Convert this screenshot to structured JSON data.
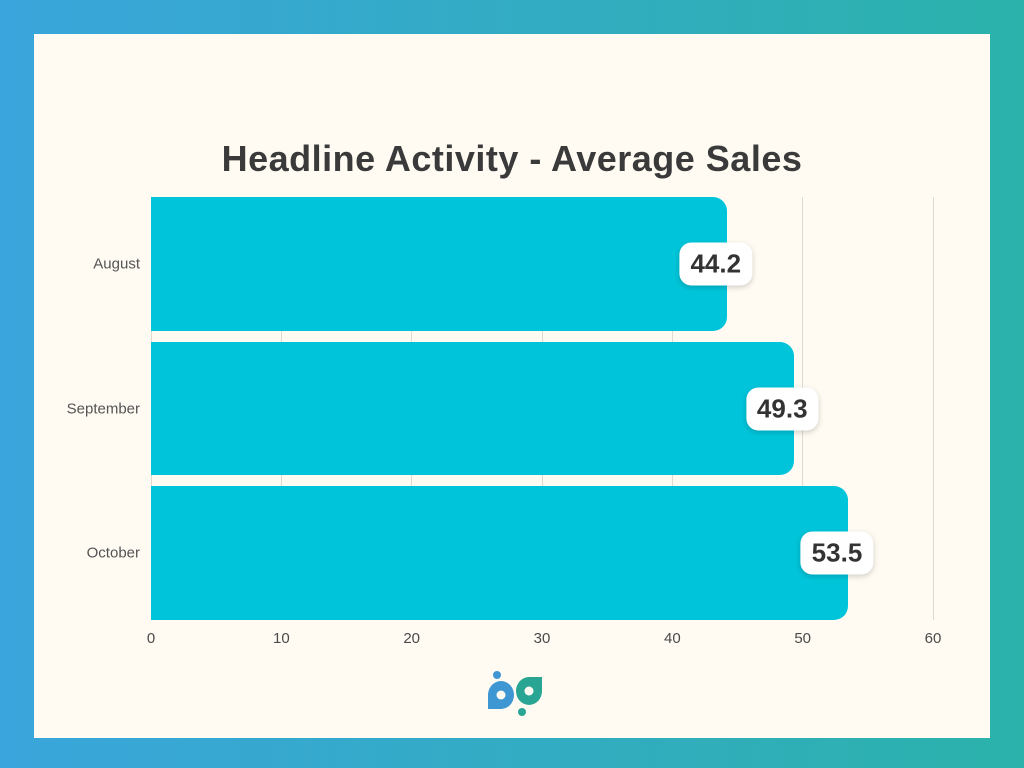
{
  "page": {
    "background_gradient_from": "#3AA5DC",
    "background_gradient_to": "#2BB2AB",
    "card_bg": "#FFFBF3"
  },
  "chart_data": {
    "type": "bar",
    "orientation": "horizontal",
    "title": "Headline Activity - Average Sales",
    "categories": [
      "August",
      "September",
      "October"
    ],
    "values": [
      44.2,
      49.3,
      53.5
    ],
    "value_labels": [
      "44.2",
      "49.3",
      "53.5"
    ],
    "xticks": [
      0,
      10,
      20,
      30,
      40,
      50,
      60
    ],
    "xtick_labels": [
      "0",
      "10",
      "20",
      "30",
      "40",
      "50",
      "60"
    ],
    "xlim": [
      0,
      60
    ],
    "grid": true,
    "legend": false,
    "bar_color": "#00C5DA",
    "grid_color": "#DEDAD2",
    "title_color": "#3A3A3A",
    "category_label_color": "#545454",
    "tick_label_color": "#4a4a4a",
    "value_label_text_color": "#333333"
  },
  "logo": {
    "name": "bp",
    "blue": "#3E96D3",
    "teal": "#2AA593"
  }
}
